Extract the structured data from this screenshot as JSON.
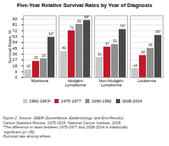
{
  "chart_data": {
    "type": "bar",
    "title": "Five-Year Relative Survival Rates by Year of Diagnosis",
    "categories": [
      "Myeloma",
      "Hodgkin\nLymphoma",
      "Non-Hodgkin\nLymphoma",
      "Leukemia"
    ],
    "series": [
      {
        "name": "1960-1963²",
        "color": "#c8c8c8",
        "values": [
          12,
          40,
          31,
          14
        ]
      },
      {
        "name": "1975-1977",
        "color": "#c0192c",
        "values": [
          25,
          72,
          47,
          34
        ]
      },
      {
        "name": "1990-1992",
        "color": "#909090",
        "values": [
          29,
          82,
          51,
          45
        ]
      },
      {
        "name": "2008-2014",
        "color": "#4a4a4a",
        "values": [
          62,
          88,
          74,
          65
        ],
        "value_labels": [
          "62*",
          "88*",
          "74*",
          "65*"
        ]
      }
    ],
    "ylabel": "Survival Rates, %",
    "ylim": [
      0,
      95
    ],
    "yticks": [
      0,
      9,
      18,
      27,
      36,
      45,
      54,
      63,
      72,
      81,
      90
    ],
    "grid": true,
    "data_labels": true,
    "legend": "bottom",
    "annotations": [
      "Figure 2. Source: SEER (Surveillance, Epidemiology, and End Results)",
      "Cancer Statistics Review, 1975-2015. National Cancer Institute; 2018.",
      "*The difference in rates between 1975-1977 and 2008-2014 is statistically",
      " significant (p<.05).",
      "²Survival rate among whites."
    ]
  }
}
